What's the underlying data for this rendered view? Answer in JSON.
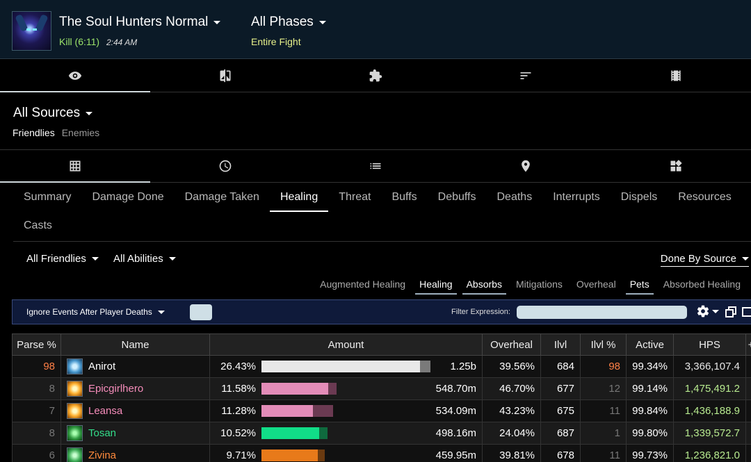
{
  "header": {
    "boss_name": "The Soul Hunters Normal",
    "kill_text": "Kill (6:11)",
    "kill_time": "2:44 AM",
    "phase_name": "All Phases",
    "phase_sub": "Entire Fight"
  },
  "top_tabs": [
    {
      "icon": "eye-icon",
      "active": true
    },
    {
      "icon": "compare-icon",
      "active": false
    },
    {
      "icon": "puzzle-icon",
      "active": false
    },
    {
      "icon": "sort-icon",
      "active": false
    },
    {
      "icon": "film-icon",
      "active": false
    }
  ],
  "sources": {
    "title": "All Sources",
    "tabs": [
      "Friendlies",
      "Enemies"
    ]
  },
  "view_tabs": [
    {
      "icon": "table-icon",
      "active": true
    },
    {
      "icon": "clock-icon",
      "active": false
    },
    {
      "icon": "list-icon",
      "active": false
    },
    {
      "icon": "map-pin-icon",
      "active": false
    },
    {
      "icon": "widgets-icon",
      "active": false
    }
  ],
  "report_tabs": {
    "row1": [
      "Summary",
      "Damage Done",
      "Damage Taken",
      "Healing",
      "Threat",
      "Buffs",
      "Debuffs",
      "Deaths",
      "Interrupts",
      "Dispels",
      "Resources"
    ],
    "row2": [
      "Casts"
    ],
    "active": "Healing"
  },
  "filters": {
    "friendlies": "All Friendlies",
    "abilities": "All Abilities",
    "done_by": "Done By Source"
  },
  "healing_types": [
    {
      "label": "Augmented Healing",
      "active": false
    },
    {
      "label": "Healing",
      "active": true
    },
    {
      "label": "Absorbs",
      "active": true
    },
    {
      "label": "Mitigations",
      "active": false
    },
    {
      "label": "Overheal",
      "active": false
    },
    {
      "label": "Pets",
      "active": true
    },
    {
      "label": "Absorbed Healing",
      "active": false
    }
  ],
  "event_bar": {
    "ignore_label": "Ignore Events After Player Deaths",
    "filter_label": "Filter Expression:",
    "filter_value": ""
  },
  "table": {
    "columns": [
      "Parse %",
      "Name",
      "Amount",
      "Overheal",
      "Ilvl",
      "Ilvl %",
      "Active",
      "HPS",
      "+"
    ],
    "rows": [
      {
        "parse": "98",
        "name": "Anirot",
        "spec": "frost",
        "name_color": "#ffffff",
        "pct": "26.43%",
        "amount": "1.25b",
        "fill": 0.93,
        "over_fill": 0.06,
        "bar_color": "#e8e8e8",
        "over_color": "#7a7a7a",
        "overheal": "39.56%",
        "ilvl": "684",
        "ilvl_pct": "98",
        "active": "99.34%",
        "hps": "3,366,107.4"
      },
      {
        "parse": "8",
        "name": "Epicgirlhero",
        "spec": "holy",
        "name_color": "#f58cba",
        "pct": "11.58%",
        "amount": "548.70m",
        "fill": 0.39,
        "over_fill": 0.05,
        "bar_color": "#e38cb8",
        "over_color": "#6b3a52",
        "overheal": "46.70%",
        "ilvl": "677",
        "ilvl_pct": "12",
        "active": "99.14%",
        "hps": "1,475,491.2"
      },
      {
        "parse": "7",
        "name": "Leansa",
        "spec": "holy",
        "name_color": "#f58cba",
        "pct": "11.28%",
        "amount": "534.09m",
        "fill": 0.3,
        "over_fill": 0.12,
        "bar_color": "#e38cb8",
        "over_color": "#6b3a52",
        "overheal": "43.23%",
        "ilvl": "675",
        "ilvl_pct": "11",
        "active": "99.84%",
        "hps": "1,436,188.9"
      },
      {
        "parse": "8",
        "name": "Tosan",
        "spec": "rev",
        "name_color": "#33dd8a",
        "pct": "10.52%",
        "amount": "498.16m",
        "fill": 0.34,
        "over_fill": 0.05,
        "bar_color": "#11dd88",
        "over_color": "#0f6a3e",
        "overheal": "24.04%",
        "ilvl": "687",
        "ilvl_pct": "1",
        "active": "99.80%",
        "hps": "1,339,572.7"
      },
      {
        "parse": "6",
        "name": "Zivina",
        "spec": "mw",
        "name_color": "#ff8a3c",
        "pct": "9.71%",
        "amount": "459.95m",
        "fill": 0.33,
        "over_fill": 0.04,
        "bar_color": "#e87a1a",
        "over_color": "#6a3a10",
        "overheal": "39.81%",
        "ilvl": "678",
        "ilvl_pct": "11",
        "active": "99.73%",
        "hps": "1,236,821.0"
      }
    ]
  }
}
